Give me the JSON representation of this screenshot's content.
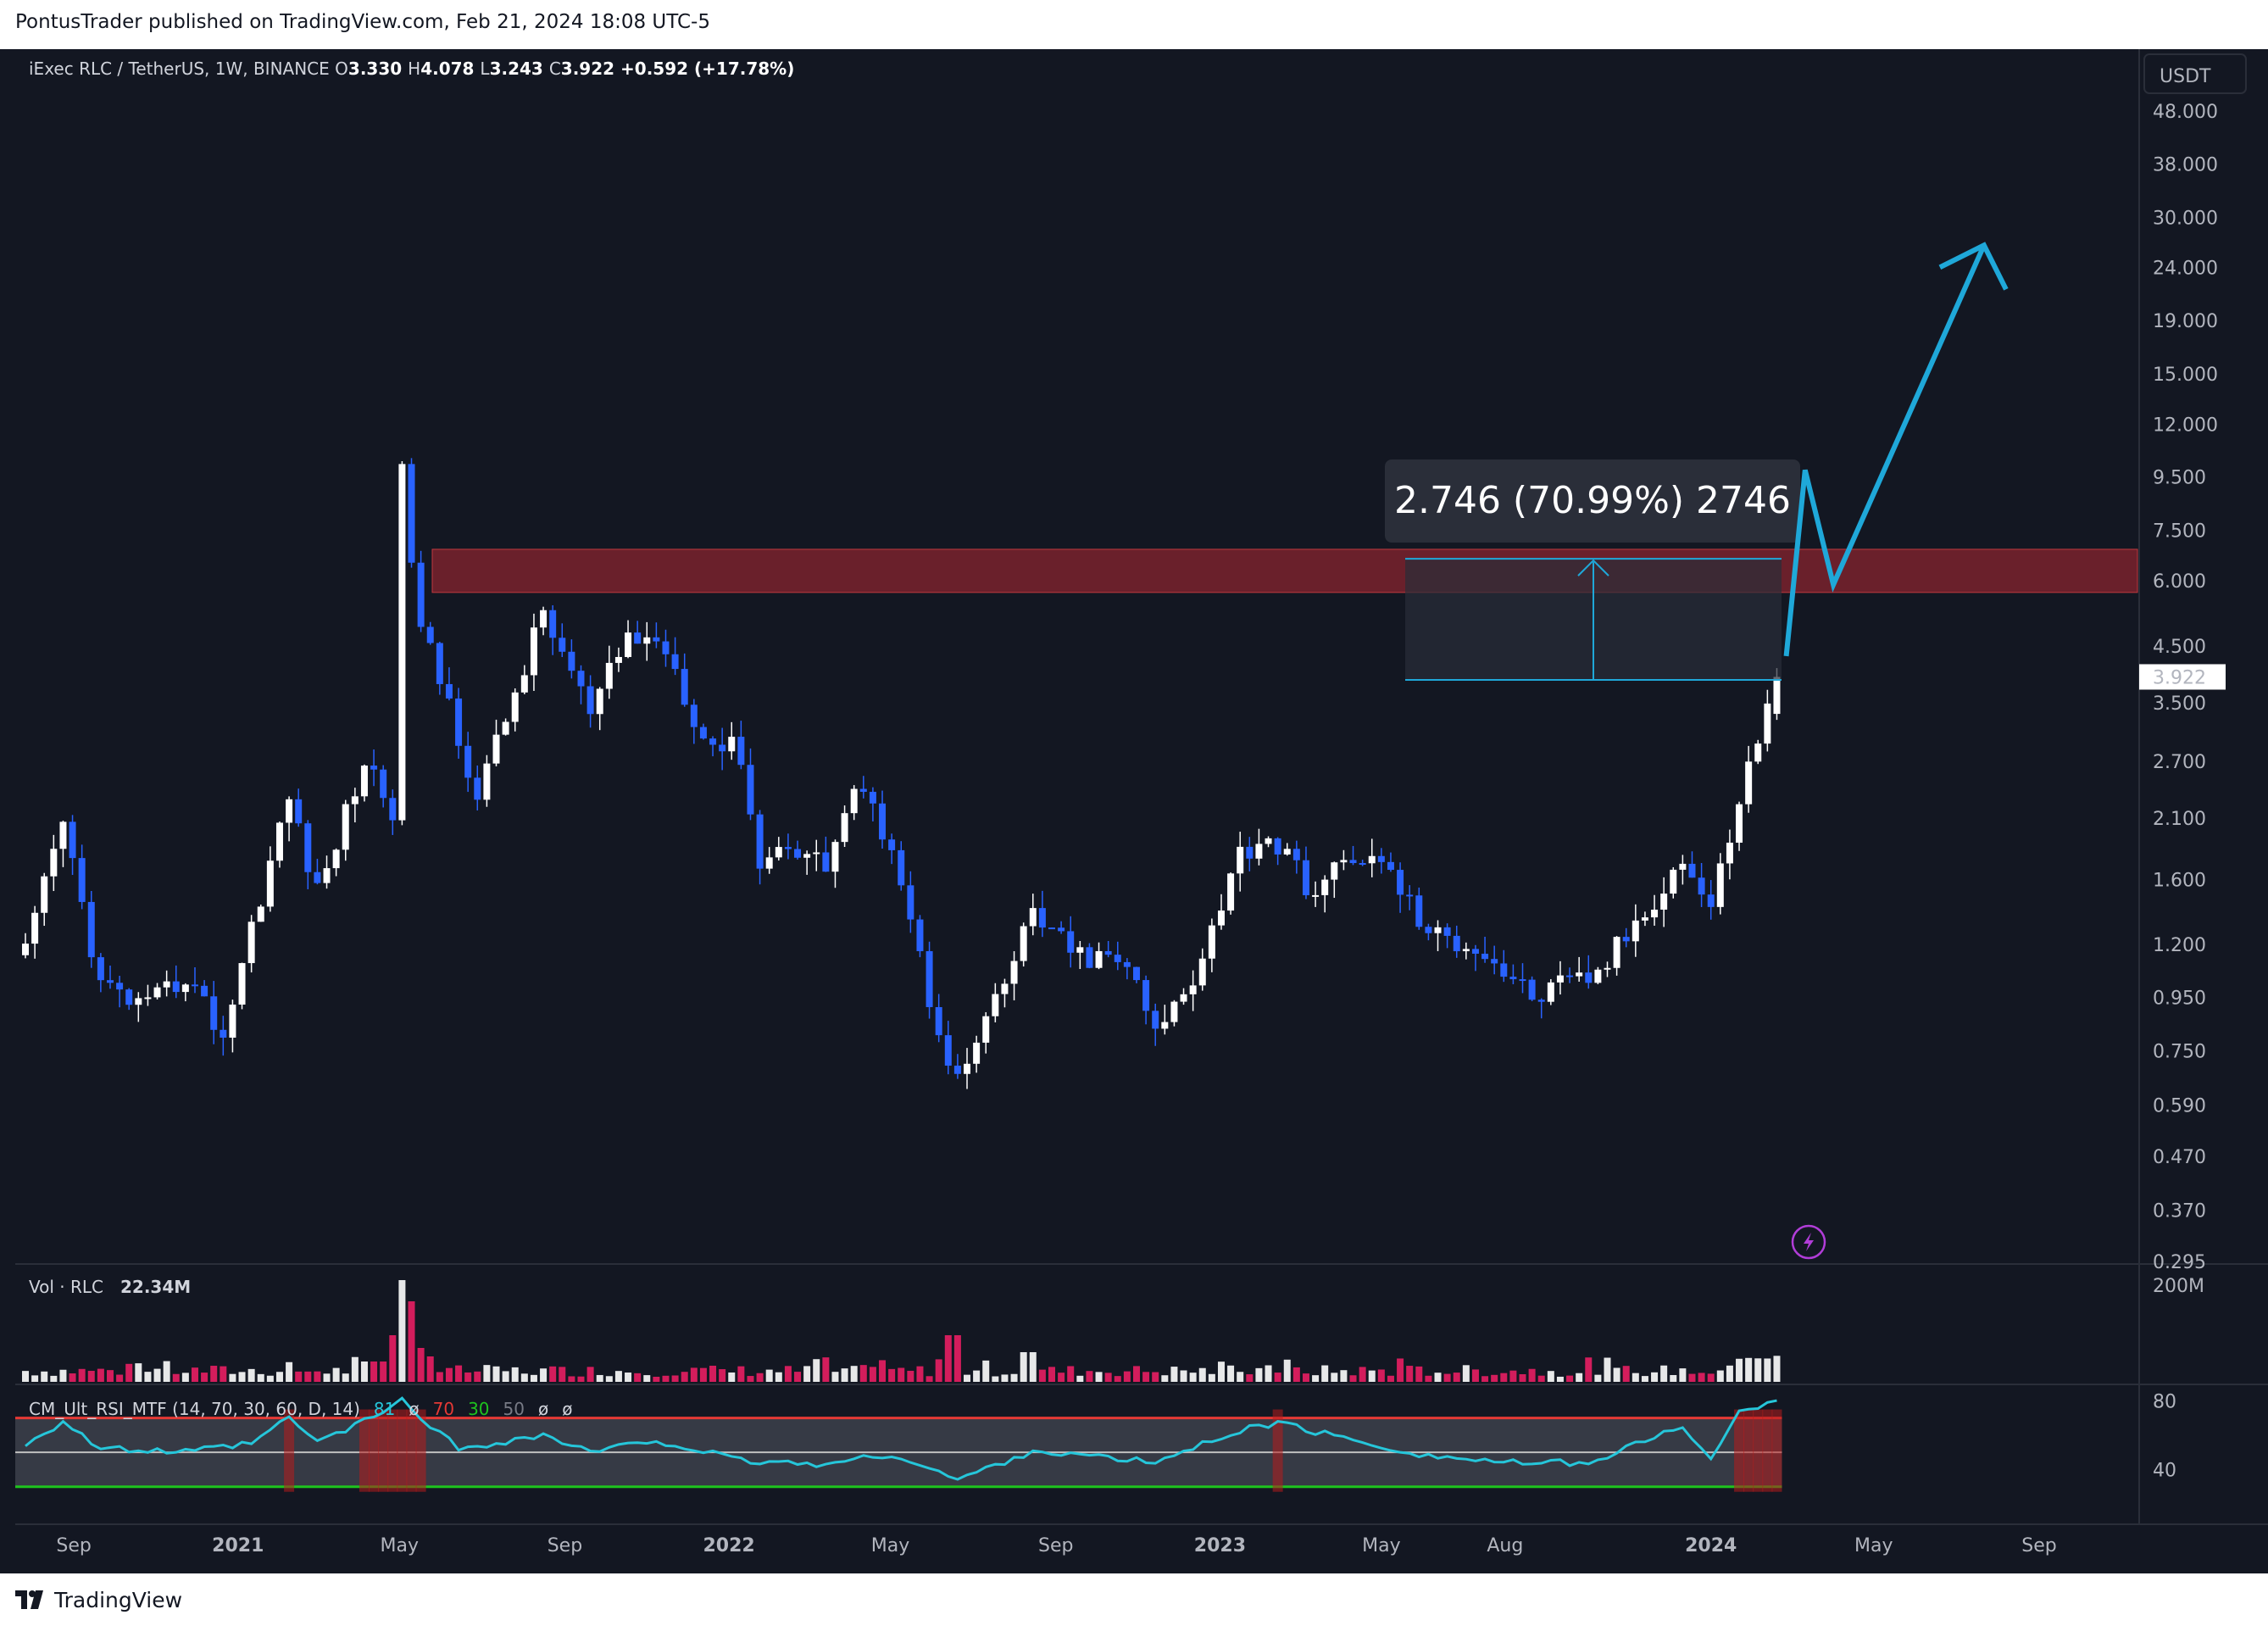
{
  "header": {
    "publish_line": "PontusTrader published on TradingView.com, Feb 21, 2024 18:08 UTC-5"
  },
  "footer": {
    "brand": "TradingView",
    "logo_icon": "tradingview-logo-icon"
  },
  "colors": {
    "background": "#131722",
    "bull": "#ffffff",
    "bear": "#2962ff",
    "vol_bull": "#ffffff",
    "vol_bear": "#e91e63",
    "zone": "#b22833",
    "accent": "#1fa8d9",
    "rsi_line": "#26c6da"
  },
  "chart_data": [
    {
      "type": "candlestick",
      "symbol_line": "iExec RLC / TetherUS, 1W, BINANCE",
      "ohlc": {
        "O": "3.330",
        "H": "4.078",
        "L": "3.243",
        "C": "3.922",
        "change": "+0.592 (+17.78%)"
      },
      "currency_label": "USDT",
      "y_scale": "log",
      "y_ticks": [
        "48.000",
        "38.000",
        "30.000",
        "24.000",
        "19.000",
        "15.000",
        "12.000",
        "9.500",
        "7.500",
        "6.000",
        "4.500",
        "3.500",
        "2.700",
        "2.100",
        "1.600",
        "1.200",
        "0.950",
        "0.750",
        "0.590",
        "0.470",
        "0.370",
        "0.295"
      ],
      "x_ticks": [
        "Sep",
        "2021",
        "May",
        "Sep",
        "2022",
        "May",
        "Sep",
        "2023",
        "May",
        "Aug",
        "2024",
        "May",
        "Sep"
      ],
      "last_price": "3.922",
      "resistance_zone": [
        5.7,
        6.9
      ],
      "measure_label": "2.746 (70.99%) 2746",
      "measure_range": [
        3.87,
        6.616
      ],
      "projection_path": [
        {
          "date": "2024-02-26",
          "price": 4.3
        },
        {
          "date": "2024-03-11",
          "price": 9.8
        },
        {
          "date": "2024-04-01",
          "price": 5.9
        },
        {
          "date": "2024-07-22",
          "price": 26.5
        }
      ],
      "path_anchors": [
        {
          "date": "2020-07-27",
          "price": 1.15
        },
        {
          "date": "2020-08-24",
          "price": 2.05
        },
        {
          "date": "2020-09-21",
          "price": 1.0
        },
        {
          "date": "2020-10-26",
          "price": 0.9
        },
        {
          "date": "2020-11-23",
          "price": 1.05
        },
        {
          "date": "2020-12-21",
          "price": 0.8
        },
        {
          "date": "2021-01-11",
          "price": 1.3
        },
        {
          "date": "2021-02-08",
          "price": 2.3
        },
        {
          "date": "2021-03-01",
          "price": 1.5
        },
        {
          "date": "2021-04-05",
          "price": 2.7
        },
        {
          "date": "2021-04-26",
          "price": 2.2
        },
        {
          "date": "2021-05-03",
          "price": 9.5
        },
        {
          "date": "2021-05-17",
          "price": 4.8
        },
        {
          "date": "2021-06-07",
          "price": 3.5
        },
        {
          "date": "2021-06-28",
          "price": 2.3
        },
        {
          "date": "2021-08-16",
          "price": 5.2
        },
        {
          "date": "2021-09-06",
          "price": 4.0
        },
        {
          "date": "2021-09-20",
          "price": 3.3
        },
        {
          "date": "2021-10-18",
          "price": 4.7
        },
        {
          "date": "2021-11-15",
          "price": 4.5
        },
        {
          "date": "2021-12-13",
          "price": 3.0
        },
        {
          "date": "2022-01-10",
          "price": 2.8
        },
        {
          "date": "2022-01-24",
          "price": 1.7
        },
        {
          "date": "2022-02-14",
          "price": 1.9
        },
        {
          "date": "2022-03-14",
          "price": 1.7
        },
        {
          "date": "2022-04-04",
          "price": 2.4
        },
        {
          "date": "2022-05-02",
          "price": 1.9
        },
        {
          "date": "2022-05-30",
          "price": 0.95
        },
        {
          "date": "2022-06-20",
          "price": 0.65
        },
        {
          "date": "2022-07-25",
          "price": 1.0
        },
        {
          "date": "2022-08-15",
          "price": 1.4
        },
        {
          "date": "2022-09-12",
          "price": 1.15
        },
        {
          "date": "2022-10-24",
          "price": 1.1
        },
        {
          "date": "2022-11-14",
          "price": 0.8
        },
        {
          "date": "2022-12-12",
          "price": 1.05
        },
        {
          "date": "2023-01-16",
          "price": 1.8
        },
        {
          "date": "2023-02-06",
          "price": 1.95
        },
        {
          "date": "2023-03-13",
          "price": 1.5
        },
        {
          "date": "2023-04-10",
          "price": 1.8
        },
        {
          "date": "2023-05-08",
          "price": 1.65
        },
        {
          "date": "2023-06-05",
          "price": 1.25
        },
        {
          "date": "2023-07-10",
          "price": 1.2
        },
        {
          "date": "2023-08-21",
          "price": 0.95
        },
        {
          "date": "2023-10-09",
          "price": 1.05
        },
        {
          "date": "2023-11-13",
          "price": 1.4
        },
        {
          "date": "2023-12-11",
          "price": 1.75
        },
        {
          "date": "2024-01-01",
          "price": 1.4
        },
        {
          "date": "2024-01-22",
          "price": 2.3
        },
        {
          "date": "2024-02-12",
          "price": 3.4
        },
        {
          "date": "2024-02-19",
          "price": 3.922
        }
      ]
    },
    {
      "type": "bar",
      "title": "Vol · RLC",
      "value_label": "22.34M",
      "y_ticks": [
        "200M"
      ]
    },
    {
      "type": "line",
      "title": "CM_Ult_RSI_MTF (14, 70, 30, 60, D, 14)",
      "legend_values": [
        "81",
        "ø",
        "70",
        "30",
        "50",
        "ø",
        "ø"
      ],
      "levels": [
        70,
        50,
        30
      ],
      "y_ticks": [
        "80",
        "40"
      ],
      "path_anchors": [
        {
          "date": "2020-07-27",
          "value": 55
        },
        {
          "date": "2020-08-24",
          "value": 68
        },
        {
          "date": "2020-09-21",
          "value": 52
        },
        {
          "date": "2020-11-23",
          "value": 50
        },
        {
          "date": "2021-01-11",
          "value": 55
        },
        {
          "date": "2021-02-08",
          "value": 70
        },
        {
          "date": "2021-03-01",
          "value": 56
        },
        {
          "date": "2021-04-05",
          "value": 68
        },
        {
          "date": "2021-05-03",
          "value": 80
        },
        {
          "date": "2021-06-14",
          "value": 52
        },
        {
          "date": "2021-08-16",
          "value": 60
        },
        {
          "date": "2021-09-20",
          "value": 50
        },
        {
          "date": "2021-11-08",
          "value": 57
        },
        {
          "date": "2022-01-10",
          "value": 45
        },
        {
          "date": "2022-03-14",
          "value": 43
        },
        {
          "date": "2022-05-02",
          "value": 49
        },
        {
          "date": "2022-06-20",
          "value": 34
        },
        {
          "date": "2022-08-15",
          "value": 51
        },
        {
          "date": "2022-11-14",
          "value": 44
        },
        {
          "date": "2023-01-16",
          "value": 63
        },
        {
          "date": "2023-02-13",
          "value": 67
        },
        {
          "date": "2023-04-10",
          "value": 57
        },
        {
          "date": "2023-06-05",
          "value": 48
        },
        {
          "date": "2023-08-21",
          "value": 43
        },
        {
          "date": "2023-10-09",
          "value": 45
        },
        {
          "date": "2023-12-11",
          "value": 66
        },
        {
          "date": "2024-01-01",
          "value": 45
        },
        {
          "date": "2024-01-22",
          "value": 73
        },
        {
          "date": "2024-02-19",
          "value": 81
        }
      ]
    }
  ]
}
